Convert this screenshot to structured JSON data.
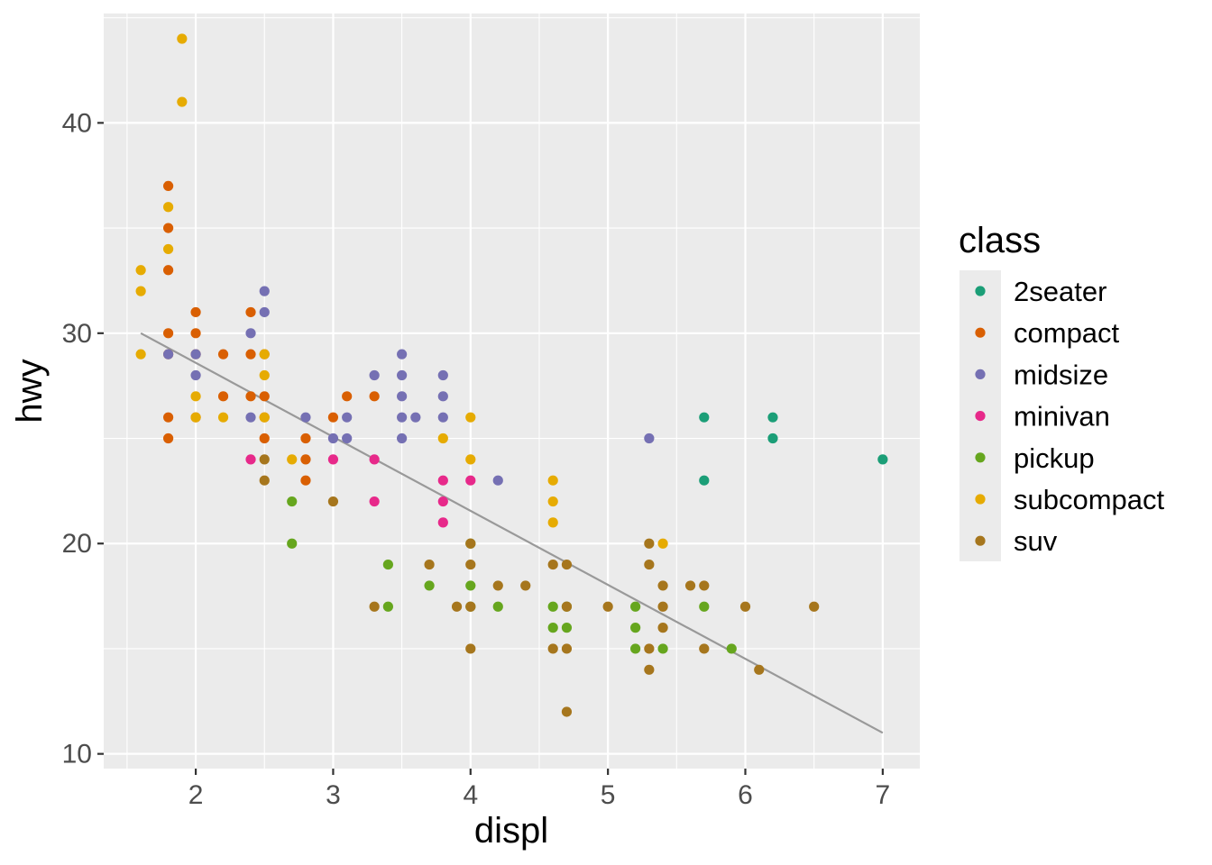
{
  "chart_data": {
    "type": "scatter",
    "title": "",
    "xlabel": "displ",
    "ylabel": "hwy",
    "xlim": [
      1.33,
      7.27
    ],
    "ylim": [
      9.3,
      45.2
    ],
    "xticks": [
      2,
      3,
      4,
      5,
      6,
      7
    ],
    "yticks": [
      10,
      20,
      30,
      40
    ],
    "grid": true,
    "legend": {
      "title": "class",
      "position": "right",
      "entries": [
        "2seater",
        "compact",
        "midsize",
        "minivan",
        "pickup",
        "subcompact",
        "suv"
      ]
    },
    "colors": {
      "2seater": "#1b9e77",
      "compact": "#d95f02",
      "midsize": "#7570b3",
      "minivan": "#e7298a",
      "pickup": "#66a61e",
      "subcompact": "#e6ab02",
      "suv": "#a6761d",
      "trend_line": "#999999",
      "panel": "#ebebeb",
      "grid": "#ffffff"
    },
    "trend_line": {
      "x": [
        1.6,
        7.0
      ],
      "y": [
        30.0,
        11.0
      ]
    },
    "series": [
      {
        "name": "2seater",
        "points": [
          [
            5.7,
            26
          ],
          [
            5.7,
            23
          ],
          [
            6.2,
            26
          ],
          [
            6.2,
            25
          ],
          [
            7.0,
            24
          ]
        ]
      },
      {
        "name": "compact",
        "points": [
          [
            1.8,
            37
          ],
          [
            1.8,
            35
          ],
          [
            1.8,
            33
          ],
          [
            1.8,
            30
          ],
          [
            1.8,
            29
          ],
          [
            1.8,
            26
          ],
          [
            1.8,
            25
          ],
          [
            2.0,
            31
          ],
          [
            2.0,
            30
          ],
          [
            2.0,
            29
          ],
          [
            2.0,
            26
          ],
          [
            2.2,
            29
          ],
          [
            2.2,
            27
          ],
          [
            2.4,
            31
          ],
          [
            2.4,
            29
          ],
          [
            2.4,
            27
          ],
          [
            2.5,
            29
          ],
          [
            2.5,
            27
          ],
          [
            2.5,
            26
          ],
          [
            2.5,
            25
          ],
          [
            2.8,
            25
          ],
          [
            2.8,
            24
          ],
          [
            2.8,
            23
          ],
          [
            3.0,
            26
          ],
          [
            3.1,
            27
          ],
          [
            3.3,
            27
          ]
        ]
      },
      {
        "name": "midsize",
        "points": [
          [
            1.8,
            29
          ],
          [
            2.0,
            29
          ],
          [
            2.0,
            28
          ],
          [
            2.4,
            30
          ],
          [
            2.4,
            26
          ],
          [
            2.5,
            32
          ],
          [
            2.5,
            31
          ],
          [
            2.8,
            26
          ],
          [
            3.0,
            25
          ],
          [
            3.1,
            26
          ],
          [
            3.1,
            25
          ],
          [
            3.3,
            28
          ],
          [
            3.5,
            29
          ],
          [
            3.5,
            28
          ],
          [
            3.5,
            27
          ],
          [
            3.5,
            26
          ],
          [
            3.5,
            25
          ],
          [
            3.6,
            26
          ],
          [
            3.8,
            28
          ],
          [
            3.8,
            27
          ],
          [
            3.8,
            26
          ],
          [
            4.2,
            23
          ],
          [
            5.3,
            25
          ]
        ]
      },
      {
        "name": "minivan",
        "points": [
          [
            2.4,
            24
          ],
          [
            3.0,
            24
          ],
          [
            3.3,
            24
          ],
          [
            3.3,
            22
          ],
          [
            3.8,
            23
          ],
          [
            3.8,
            22
          ],
          [
            3.8,
            21
          ],
          [
            4.0,
            23
          ]
        ]
      },
      {
        "name": "pickup",
        "points": [
          [
            2.7,
            22
          ],
          [
            2.7,
            20
          ],
          [
            3.4,
            19
          ],
          [
            3.4,
            17
          ],
          [
            3.7,
            18
          ],
          [
            4.0,
            20
          ],
          [
            4.0,
            18
          ],
          [
            4.0,
            17
          ],
          [
            4.2,
            17
          ],
          [
            4.6,
            17
          ],
          [
            4.6,
            16
          ],
          [
            4.7,
            17
          ],
          [
            4.7,
            16
          ],
          [
            5.2,
            17
          ],
          [
            5.2,
            16
          ],
          [
            5.2,
            15
          ],
          [
            5.4,
            15
          ],
          [
            5.7,
            17
          ],
          [
            5.9,
            15
          ]
        ]
      },
      {
        "name": "subcompact",
        "points": [
          [
            1.6,
            33
          ],
          [
            1.6,
            32
          ],
          [
            1.6,
            29
          ],
          [
            1.8,
            36
          ],
          [
            1.8,
            34
          ],
          [
            1.9,
            44
          ],
          [
            1.9,
            41
          ],
          [
            2.0,
            27
          ],
          [
            2.0,
            26
          ],
          [
            2.2,
            26
          ],
          [
            2.5,
            29
          ],
          [
            2.5,
            28
          ],
          [
            2.5,
            26
          ],
          [
            2.7,
            24
          ],
          [
            3.8,
            25
          ],
          [
            4.0,
            26
          ],
          [
            4.0,
            24
          ],
          [
            4.6,
            23
          ],
          [
            4.6,
            22
          ],
          [
            4.6,
            21
          ],
          [
            5.4,
            20
          ]
        ]
      },
      {
        "name": "suv",
        "points": [
          [
            2.5,
            24
          ],
          [
            2.5,
            23
          ],
          [
            3.0,
            22
          ],
          [
            3.3,
            17
          ],
          [
            3.7,
            19
          ],
          [
            3.9,
            17
          ],
          [
            4.0,
            20
          ],
          [
            4.0,
            19
          ],
          [
            4.0,
            17
          ],
          [
            4.0,
            15
          ],
          [
            4.2,
            18
          ],
          [
            4.4,
            18
          ],
          [
            4.6,
            19
          ],
          [
            4.6,
            15
          ],
          [
            4.7,
            19
          ],
          [
            4.7,
            17
          ],
          [
            4.7,
            15
          ],
          [
            4.7,
            12
          ],
          [
            5.0,
            17
          ],
          [
            5.3,
            20
          ],
          [
            5.3,
            19
          ],
          [
            5.3,
            15
          ],
          [
            5.3,
            14
          ],
          [
            5.4,
            18
          ],
          [
            5.4,
            17
          ],
          [
            5.4,
            16
          ],
          [
            5.6,
            18
          ],
          [
            5.7,
            18
          ],
          [
            5.7,
            15
          ],
          [
            6.0,
            17
          ],
          [
            6.1,
            14
          ],
          [
            6.5,
            17
          ]
        ]
      }
    ]
  }
}
